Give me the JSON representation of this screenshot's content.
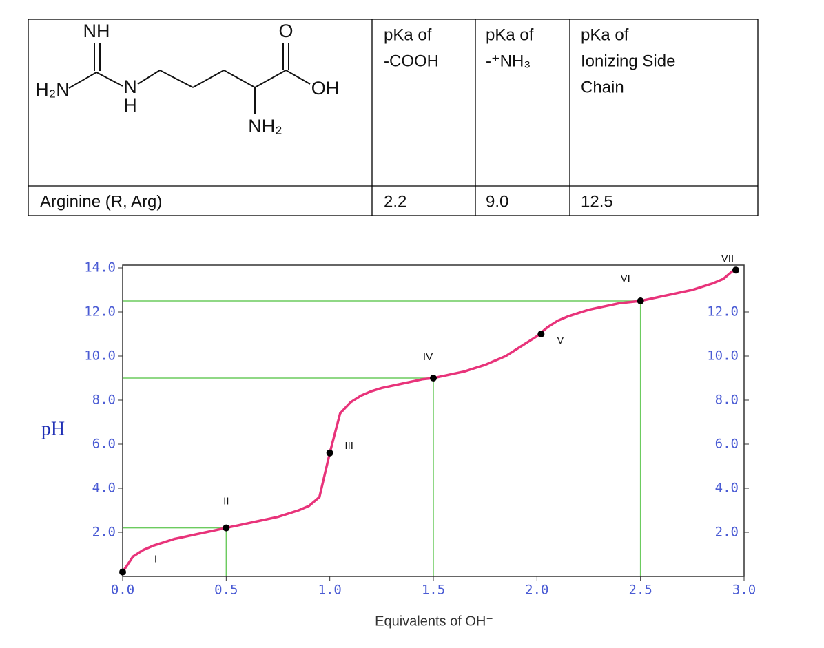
{
  "table": {
    "structure_labels": [
      "NH",
      "H₂N",
      "N",
      "H",
      "O",
      "OH",
      "NH₂"
    ],
    "header": [
      [
        "pKa of",
        "-COOH"
      ],
      [
        "pKa of",
        "-⁺NH₃"
      ],
      [
        "pKa of",
        "Ionizing Side",
        "Chain"
      ]
    ],
    "rows": [
      [
        "Arginine (R, Arg)",
        "2.2",
        "9.0",
        "12.5"
      ]
    ]
  },
  "chart_data": {
    "type": "line",
    "xlabel": "Equivalents of OH⁻",
    "ylabel": "pH",
    "xlim": [
      0,
      3
    ],
    "ylim": [
      0,
      14
    ],
    "xticks": [
      {
        "value": 0,
        "label": "0.0"
      },
      {
        "value": 0.5,
        "label": "0.5"
      },
      {
        "value": 1,
        "label": "1.0"
      },
      {
        "value": 1.5,
        "label": "1.5"
      },
      {
        "value": 2,
        "label": "2.0"
      },
      {
        "value": 2.5,
        "label": "2.5"
      },
      {
        "value": 3,
        "label": "3.0"
      }
    ],
    "yticks": [
      {
        "value": 2,
        "label": "2.0"
      },
      {
        "value": 4,
        "label": "4.0"
      },
      {
        "value": 6,
        "label": "6.0"
      },
      {
        "value": 8,
        "label": "8.0"
      },
      {
        "value": 10,
        "label": "10.0"
      },
      {
        "value": 12,
        "label": "12.0"
      },
      {
        "value": 14,
        "label": "14.0"
      }
    ],
    "y2ticks": [
      {
        "value": 2,
        "label": "2.0"
      },
      {
        "value": 4,
        "label": "4.0"
      },
      {
        "value": 6,
        "label": "6.0"
      },
      {
        "value": 8,
        "label": "8.0"
      },
      {
        "value": 10,
        "label": "10.0"
      },
      {
        "value": 12,
        "label": "12.0"
      }
    ],
    "series": [
      {
        "color": "#e8337a",
        "x": [
          0,
          0.05,
          0.1,
          0.15,
          0.2,
          0.25,
          0.3,
          0.35,
          0.4,
          0.45,
          0.5,
          0.55,
          0.6,
          0.65,
          0.7,
          0.75,
          0.8,
          0.85,
          0.9,
          0.95,
          1.0,
          1.05,
          1.1,
          1.15,
          1.2,
          1.25,
          1.3,
          1.35,
          1.4,
          1.45,
          1.5,
          1.55,
          1.6,
          1.65,
          1.7,
          1.75,
          1.8,
          1.85,
          1.9,
          1.95,
          2.0,
          2.05,
          2.1,
          2.15,
          2.2,
          2.25,
          2.3,
          2.35,
          2.4,
          2.45,
          2.5,
          2.55,
          2.6,
          2.65,
          2.7,
          2.75,
          2.8,
          2.85,
          2.9,
          2.95
        ],
        "values": [
          0.2,
          0.9,
          1.2,
          1.4,
          1.55,
          1.7,
          1.8,
          1.9,
          2.0,
          2.1,
          2.2,
          2.3,
          2.4,
          2.5,
          2.6,
          2.7,
          2.85,
          3.0,
          3.2,
          3.6,
          5.6,
          7.4,
          7.9,
          8.2,
          8.4,
          8.55,
          8.65,
          8.75,
          8.85,
          8.95,
          9.0,
          9.1,
          9.2,
          9.3,
          9.45,
          9.6,
          9.8,
          10.0,
          10.3,
          10.6,
          10.9,
          11.3,
          11.6,
          11.8,
          11.95,
          12.1,
          12.2,
          12.3,
          12.4,
          12.45,
          12.5,
          12.6,
          12.7,
          12.8,
          12.9,
          13.0,
          13.15,
          13.3,
          13.5,
          13.9
        ]
      }
    ],
    "points": {
      "color": "#000000",
      "x": [
        0,
        0.5,
        1.0,
        1.5,
        2.02,
        2.5,
        2.96
      ],
      "values": [
        0.2,
        2.2,
        5.6,
        9.0,
        11.0,
        12.5,
        13.9
      ],
      "labels": [
        "I",
        "II",
        "III",
        "IV",
        "V",
        "VI",
        "VII"
      ]
    },
    "reference_lines": {
      "color": "#6ccb5f",
      "x": [
        0.5,
        1.5,
        2.5
      ],
      "values": [
        2.2,
        9.0,
        12.5
      ]
    }
  }
}
